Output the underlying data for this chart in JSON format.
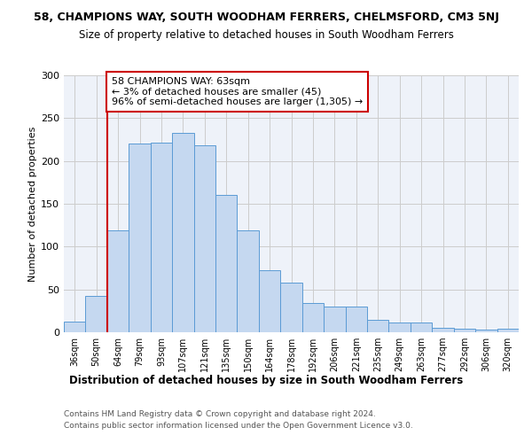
{
  "title1": "58, CHAMPIONS WAY, SOUTH WOODHAM FERRERS, CHELMSFORD, CM3 5NJ",
  "title2": "Size of property relative to detached houses in South Woodham Ferrers",
  "xlabel": "Distribution of detached houses by size in South Woodham Ferrers",
  "ylabel": "Number of detached properties",
  "footer1": "Contains HM Land Registry data © Crown copyright and database right 2024.",
  "footer2": "Contains public sector information licensed under the Open Government Licence v3.0.",
  "bar_labels": [
    "36sqm",
    "50sqm",
    "64sqm",
    "79sqm",
    "93sqm",
    "107sqm",
    "121sqm",
    "135sqm",
    "150sqm",
    "164sqm",
    "178sqm",
    "192sqm",
    "206sqm",
    "221sqm",
    "235sqm",
    "249sqm",
    "263sqm",
    "277sqm",
    "292sqm",
    "306sqm",
    "320sqm"
  ],
  "bar_values": [
    12,
    42,
    119,
    220,
    221,
    233,
    218,
    160,
    119,
    72,
    58,
    34,
    30,
    30,
    15,
    11,
    11,
    5,
    4,
    3,
    4
  ],
  "bar_color": "#c5d8f0",
  "bar_edge_color": "#5b9bd5",
  "vline_color": "#cc0000",
  "annotation_text": "58 CHAMPIONS WAY: 63sqm\n← 3% of detached houses are smaller (45)\n96% of semi-detached houses are larger (1,305) →",
  "annotation_box_color": "white",
  "annotation_box_edge_color": "#cc0000",
  "annotation_fontsize": 8,
  "ylim": [
    0,
    300
  ],
  "yticks": [
    0,
    50,
    100,
    150,
    200,
    250,
    300
  ],
  "grid_color": "#cccccc",
  "bg_color": "#eef2f9",
  "title1_fontsize": 9,
  "title2_fontsize": 8.5,
  "xlabel_fontsize": 8.5,
  "ylabel_fontsize": 8,
  "footer_fontsize": 6.5
}
